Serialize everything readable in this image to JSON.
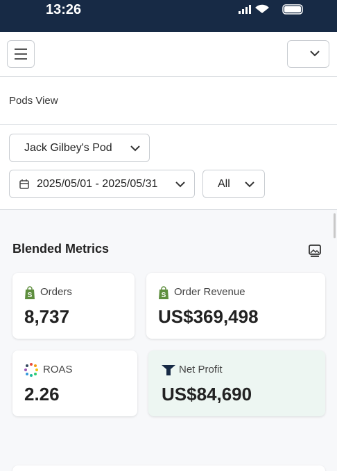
{
  "status_bar": {
    "time": "13:26"
  },
  "page": {
    "title": "Pods View"
  },
  "filters": {
    "pod": "Jack Gilbey's Pod",
    "date_range": "2025/05/01 - 2025/05/31",
    "scope": "All"
  },
  "section": {
    "title": "Blended Metrics",
    "cards": [
      {
        "label": "Orders",
        "value": "8,737"
      },
      {
        "label": "Order Revenue",
        "value": "US$369,498"
      },
      {
        "label": "ROAS",
        "value": "2.26"
      },
      {
        "label": "Net Profit",
        "value": "US$84,690"
      }
    ]
  }
}
